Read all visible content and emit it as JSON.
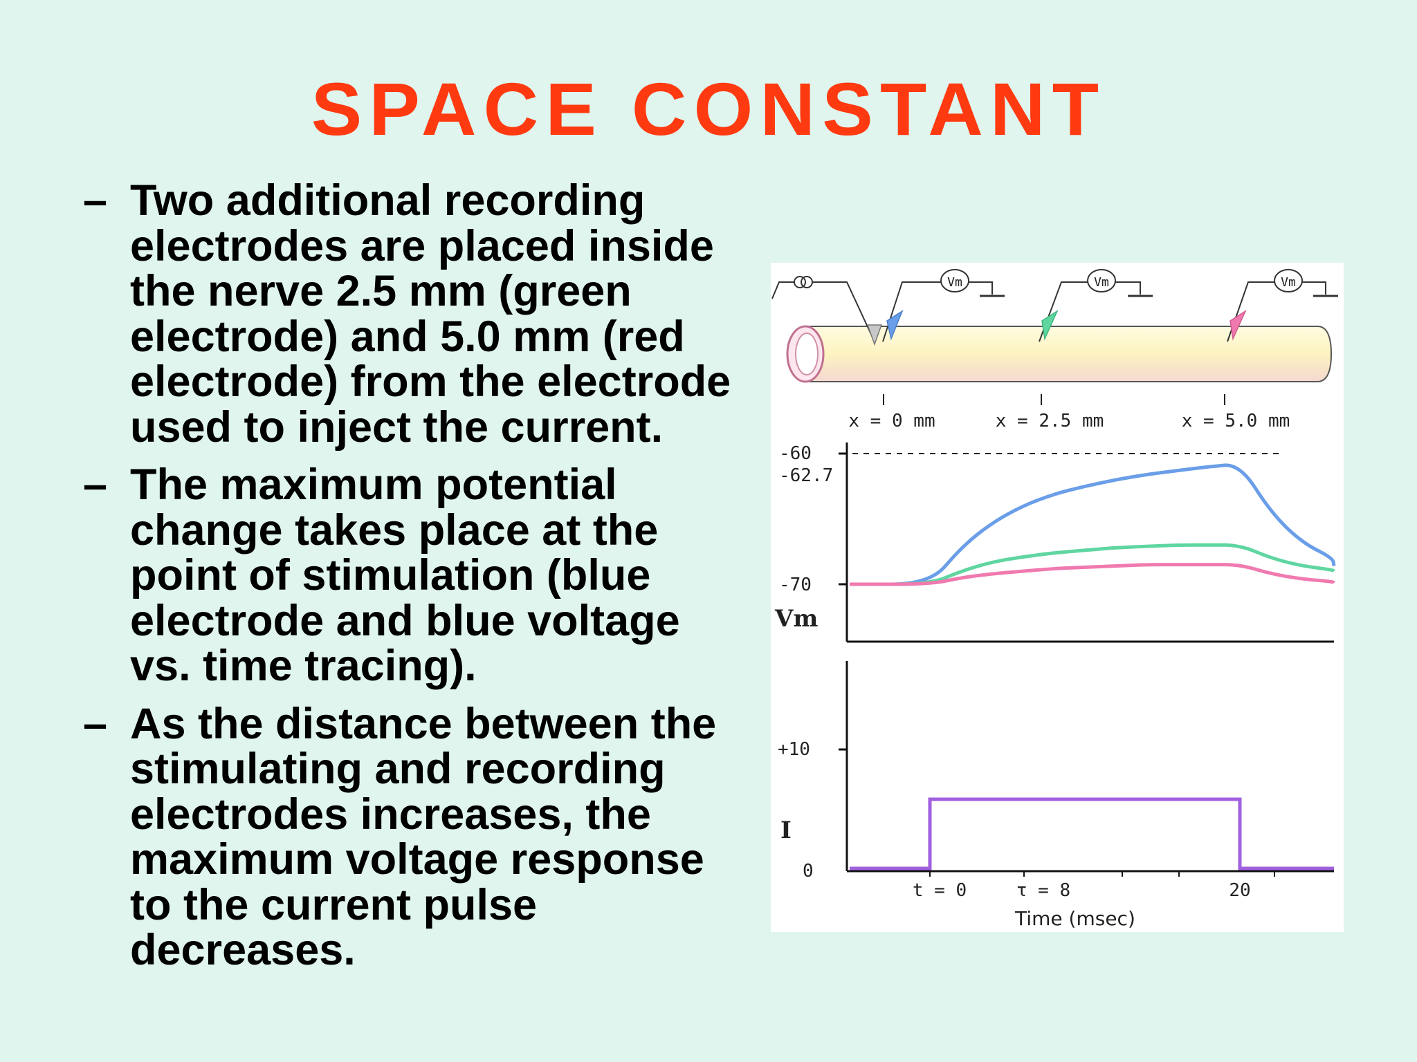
{
  "title": "SPACE CONSTANT",
  "bullet_marker": "–",
  "bullets": [
    "Two additional recording electrodes are placed inside the nerve 2.5 mm (green electrode) and 5.0 mm (red electrode) from the electrode used to inject the current.",
    "The maximum potential change takes place at the point of stimulation (blue electrode and blue voltage vs. time tracing).",
    "As the distance between the stimulating and recording electrodes increases, the maximum voltage response to the current pulse decreases."
  ],
  "figure": {
    "electrode_labels": {
      "current_symbol": "",
      "vm": "Vm"
    },
    "positions": [
      "x = 0 mm",
      "x = 2.5 mm",
      "x = 5.0 mm"
    ],
    "colors": {
      "blue": "#6a9ee8",
      "green": "#5fd6a0",
      "red": "#f07ab0",
      "pulse": "#a060e0",
      "nerve": "#fdf6c8"
    },
    "vm_panel": {
      "ylabel": "Vm",
      "ticks": [
        "-60",
        "-62.7",
        "-70"
      ],
      "dashed_level": "-60"
    },
    "i_panel": {
      "ylabel": "I",
      "ticks": [
        "+10",
        "0"
      ]
    },
    "time_ticks": [
      "t = 0",
      "τ = 8",
      "20"
    ],
    "xlabel": "Time (msec)"
  },
  "chart_data": {
    "type": "line",
    "title": "",
    "xlabel": "Time (msec)",
    "ylabel": "Vm",
    "x": [
      -10,
      -5,
      0,
      2,
      4,
      6,
      8,
      10,
      12,
      14,
      16,
      18,
      20,
      22,
      24,
      26,
      28
    ],
    "series": [
      {
        "name": "",
        "color": "#6a9ee8",
        "values": [
          -70,
          -70,
          -70,
          -67.2,
          -65.3,
          -64.0,
          -63.1,
          -62.5,
          -62.0,
          -61.6,
          -61.3,
          -61.0,
          -60.8,
          -64.5,
          -66.8,
          -68.0,
          -68.6
        ]
      },
      {
        "name": "",
        "color": "#5fd6a0",
        "values": [
          -70,
          -70,
          -70,
          -69.0,
          -68.3,
          -67.9,
          -67.6,
          -67.4,
          -67.2,
          -67.1,
          -67.0,
          -67.0,
          -67.0,
          -68.0,
          -68.6,
          -68.9,
          -69.0
        ]
      },
      {
        "name": "",
        "color": "#f07ab0",
        "values": [
          -70,
          -70,
          -70,
          -69.5,
          -69.2,
          -69.0,
          -68.8,
          -68.7,
          -68.6,
          -68.5,
          -68.5,
          -68.5,
          -68.5,
          -69.2,
          -69.6,
          -69.8,
          -69.9
        ]
      }
    ],
    "ylim": [
      -72,
      -59
    ],
    "xlim": [
      -10,
      28
    ],
    "current": {
      "x": [
        -10,
        0,
        0,
        20,
        20,
        28
      ],
      "values": [
        0,
        0,
        6,
        6,
        0,
        0
      ],
      "ylim": [
        0,
        14
      ]
    }
  }
}
